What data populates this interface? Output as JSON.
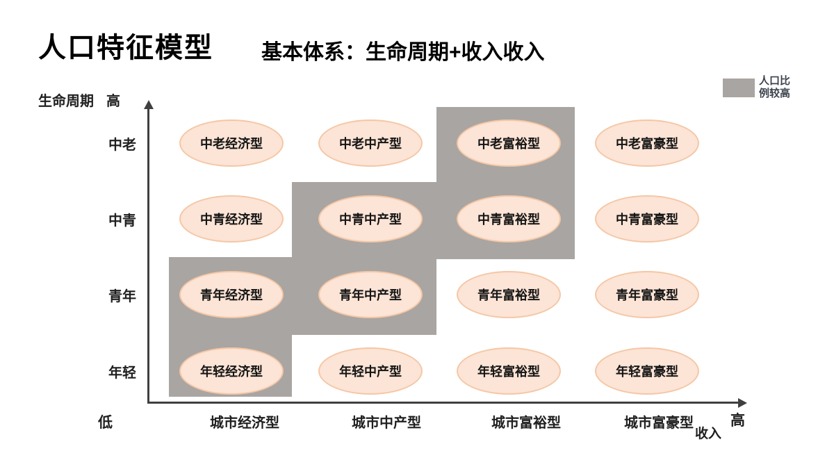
{
  "slide": {
    "title": "人口特征模型",
    "subtitle": "基本体系：生命周期+收入收入"
  },
  "legend": {
    "swatch_color": "#a9a5a2",
    "line1": "人口比",
    "line2": "例较高"
  },
  "y_axis": {
    "title": "生命周期",
    "high_label": "高",
    "low_label": "低",
    "categories": [
      "中老",
      "中青",
      "青年",
      "年轻"
    ]
  },
  "x_axis": {
    "title": "收入",
    "high_label": "高",
    "categories": [
      "城市经济型",
      "城市中产型",
      "城市富裕型",
      "城市富豪型"
    ]
  },
  "cells": [
    {
      "label": "中老经济型",
      "highlighted": false
    },
    {
      "label": "中老中产型",
      "highlighted": false
    },
    {
      "label": "中老富裕型",
      "highlighted": true
    },
    {
      "label": "中老富豪型",
      "highlighted": false
    },
    {
      "label": "中青经济型",
      "highlighted": false
    },
    {
      "label": "中青中产型",
      "highlighted": true
    },
    {
      "label": "中青富裕型",
      "highlighted": true
    },
    {
      "label": "中青富豪型",
      "highlighted": false
    },
    {
      "label": "青年经济型",
      "highlighted": true
    },
    {
      "label": "青年中产型",
      "highlighted": true
    },
    {
      "label": "青年富裕型",
      "highlighted": false
    },
    {
      "label": "青年富豪型",
      "highlighted": false
    },
    {
      "label": "年轻经济型",
      "highlighted": true
    },
    {
      "label": "年轻中产型",
      "highlighted": false
    },
    {
      "label": "年轻富裕型",
      "highlighted": false
    },
    {
      "label": "年轻富豪型",
      "highlighted": false
    }
  ],
  "colors": {
    "ellipse_fill": "#fce4d6",
    "ellipse_border": "#f4c7a5",
    "highlight_gray": "#a9a5a2",
    "axis": "#3f3f3f",
    "text": "#1f1f1f"
  }
}
